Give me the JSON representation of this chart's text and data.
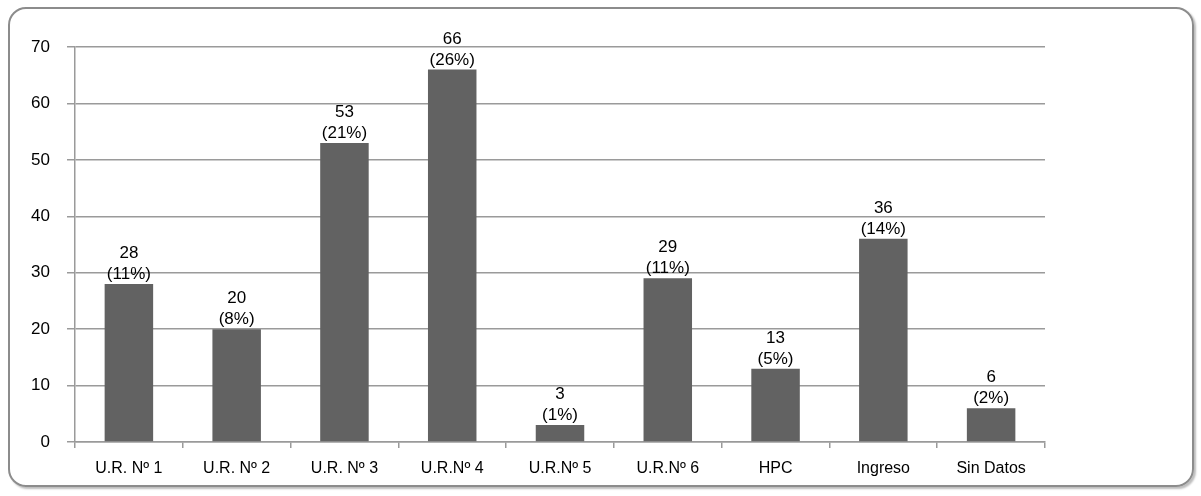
{
  "chart_data": {
    "type": "bar",
    "categories": [
      "U.R. Nº 1",
      "U.R. Nº 2",
      "U.R. Nº 3",
      "U.R.Nº 4",
      "U.R.Nº 5",
      "U.R.Nº 6",
      "HPC",
      "Ingreso",
      "Sin Datos"
    ],
    "values": [
      28,
      20,
      53,
      66,
      3,
      29,
      13,
      36,
      6
    ],
    "value_labels": [
      "28\n(11%)",
      "20\n(8%)",
      "53\n(21%)",
      "66\n(26%)",
      "3\n(1%)",
      "29\n(11%)",
      "13\n(5%)",
      "36\n(14%)",
      "6\n(2%)"
    ],
    "color": "#626262",
    "ylim": [
      0,
      70
    ],
    "yticks": [
      0,
      10,
      20,
      30,
      40,
      50,
      60,
      70
    ],
    "grid": "y"
  }
}
